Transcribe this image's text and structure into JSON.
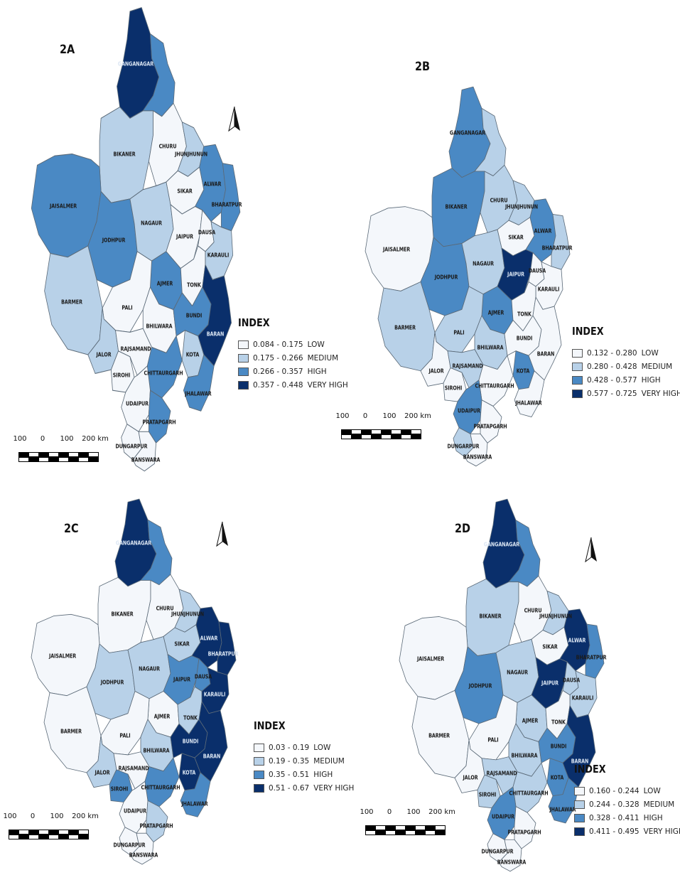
{
  "colors": {
    "low": "#f4f7fb",
    "medium": "#b8d1e8",
    "high": "#4a89c4",
    "very_high": "#0a2f6b",
    "border": "#5b6a78"
  },
  "panels": [
    {
      "label": "2A",
      "legend": {
        "title": "INDEX",
        "classes": [
          {
            "range": "0.084 - 0.175",
            "level": "LOW",
            "key": "low"
          },
          {
            "range": "0.175 - 0.266",
            "level": "MEDIUM",
            "key": "medium"
          },
          {
            "range": "0.266 - 0.357",
            "level": "HIGH",
            "key": "high"
          },
          {
            "range": "0.357 - 0.448",
            "level": "VERY HIGH",
            "key": "very_high"
          }
        ]
      },
      "scale": {
        "ticks": [
          "100",
          "0",
          "100",
          "200 km"
        ]
      },
      "north_arrow": "north-arrow-icon",
      "districts": [
        {
          "name": "GANGANAGAR",
          "class": "very_high"
        },
        {
          "name": "HANUMANGARH",
          "class": "high"
        },
        {
          "name": "BIKANER",
          "class": "medium"
        },
        {
          "name": "CHURU",
          "class": "low"
        },
        {
          "name": "JHUNJHUNUN",
          "class": "medium"
        },
        {
          "name": "SIKAR",
          "class": "low"
        },
        {
          "name": "ALWAR",
          "class": "high"
        },
        {
          "name": "BHARATPUR",
          "class": "high"
        },
        {
          "name": "JAISALMER",
          "class": "high"
        },
        {
          "name": "JODHPUR",
          "class": "high"
        },
        {
          "name": "NAGAUR",
          "class": "medium"
        },
        {
          "name": "JAIPUR",
          "class": "low"
        },
        {
          "name": "DAUSA",
          "class": "low"
        },
        {
          "name": "KARAULI",
          "class": "medium"
        },
        {
          "name": "AJMER",
          "class": "high"
        },
        {
          "name": "TONK",
          "class": "low"
        },
        {
          "name": "BARMER",
          "class": "medium"
        },
        {
          "name": "PALI",
          "class": "low"
        },
        {
          "name": "BHILWARA",
          "class": "low"
        },
        {
          "name": "BUNDI",
          "class": "high"
        },
        {
          "name": "KOTA",
          "class": "medium"
        },
        {
          "name": "BARAN",
          "class": "very_high"
        },
        {
          "name": "JALOR",
          "class": "medium"
        },
        {
          "name": "SIROHI",
          "class": "low"
        },
        {
          "name": "RAJSAMAND",
          "class": "low"
        },
        {
          "name": "CHITTAURGARH",
          "class": "high"
        },
        {
          "name": "UDAIPUR",
          "class": "low"
        },
        {
          "name": "JHALAWAR",
          "class": "high"
        },
        {
          "name": "PRATAPGARH",
          "class": "high"
        },
        {
          "name": "DUNGARPUR",
          "class": "low"
        },
        {
          "name": "BANSWARA",
          "class": "low"
        }
      ]
    },
    {
      "label": "2B",
      "legend": {
        "title": "INDEX",
        "classes": [
          {
            "range": "0.132 - 0.280",
            "level": "LOW",
            "key": "low"
          },
          {
            "range": "0.280 - 0.428",
            "level": "MEDIUM",
            "key": "medium"
          },
          {
            "range": "0.428 - 0.577",
            "level": "HIGH",
            "key": "high"
          },
          {
            "range": "0.577 - 0.725",
            "level": "VERY HIGH",
            "key": "very_high"
          }
        ]
      },
      "scale": {
        "ticks": [
          "100",
          "0",
          "100",
          "200 km"
        ]
      },
      "north_arrow": "",
      "districts": [
        {
          "name": "GANGANAGAR",
          "class": "high"
        },
        {
          "name": "HANUMANGARH",
          "class": "medium"
        },
        {
          "name": "BIKANER",
          "class": "high"
        },
        {
          "name": "CHURU",
          "class": "medium"
        },
        {
          "name": "JHUNJHUNUN",
          "class": "medium"
        },
        {
          "name": "SIKAR",
          "class": "low"
        },
        {
          "name": "ALWAR",
          "class": "high"
        },
        {
          "name": "BHARATPUR",
          "class": "medium"
        },
        {
          "name": "JAISALMER",
          "class": "low"
        },
        {
          "name": "JODHPUR",
          "class": "high"
        },
        {
          "name": "NAGAUR",
          "class": "medium"
        },
        {
          "name": "JAIPUR",
          "class": "very_high"
        },
        {
          "name": "DAUSA",
          "class": "low"
        },
        {
          "name": "KARAULI",
          "class": "low"
        },
        {
          "name": "AJMER",
          "class": "high"
        },
        {
          "name": "TONK",
          "class": "low"
        },
        {
          "name": "BARMER",
          "class": "medium"
        },
        {
          "name": "PALI",
          "class": "medium"
        },
        {
          "name": "BHILWARA",
          "class": "medium"
        },
        {
          "name": "BUNDI",
          "class": "low"
        },
        {
          "name": "KOTA",
          "class": "high"
        },
        {
          "name": "BARAN",
          "class": "low"
        },
        {
          "name": "JALOR",
          "class": "low"
        },
        {
          "name": "SIROHI",
          "class": "low"
        },
        {
          "name": "RAJSAMAND",
          "class": "medium"
        },
        {
          "name": "CHITTAURGARH",
          "class": "low"
        },
        {
          "name": "UDAIPUR",
          "class": "high"
        },
        {
          "name": "JHALAWAR",
          "class": "low"
        },
        {
          "name": "PRATAPGARH",
          "class": "low"
        },
        {
          "name": "DUNGARPUR",
          "class": "medium"
        },
        {
          "name": "BANSWARA",
          "class": "low"
        }
      ]
    },
    {
      "label": "2C",
      "legend": {
        "title": "INDEX",
        "classes": [
          {
            "range": "0.03 - 0.19",
            "level": "LOW",
            "key": "low"
          },
          {
            "range": "0.19 - 0.35",
            "level": "MEDIUM",
            "key": "medium"
          },
          {
            "range": "0.35 - 0.51",
            "level": "HIGH",
            "key": "high"
          },
          {
            "range": "0.51 - 0.67",
            "level": "VERY HIGH",
            "key": "very_high"
          }
        ]
      },
      "scale": {
        "ticks": [
          "100",
          "0",
          "100",
          "200 km"
        ]
      },
      "north_arrow": "north-arrow-icon",
      "districts": [
        {
          "name": "GANGANAGAR",
          "class": "very_high"
        },
        {
          "name": "HANUMANGARH",
          "class": "high"
        },
        {
          "name": "BIKANER",
          "class": "low"
        },
        {
          "name": "CHURU",
          "class": "low"
        },
        {
          "name": "JHUNJHUNUN",
          "class": "medium"
        },
        {
          "name": "SIKAR",
          "class": "medium"
        },
        {
          "name": "ALWAR",
          "class": "very_high"
        },
        {
          "name": "BHARATPUR",
          "class": "very_high"
        },
        {
          "name": "JAISALMER",
          "class": "low"
        },
        {
          "name": "JODHPUR",
          "class": "medium"
        },
        {
          "name": "NAGAUR",
          "class": "medium"
        },
        {
          "name": "JAIPUR",
          "class": "high"
        },
        {
          "name": "DAUSA",
          "class": "high"
        },
        {
          "name": "KARAULI",
          "class": "very_high"
        },
        {
          "name": "AJMER",
          "class": "low"
        },
        {
          "name": "TONK",
          "class": "medium"
        },
        {
          "name": "BARMER",
          "class": "low"
        },
        {
          "name": "PALI",
          "class": "low"
        },
        {
          "name": "BHILWARA",
          "class": "medium"
        },
        {
          "name": "BUNDI",
          "class": "very_high"
        },
        {
          "name": "KOTA",
          "class": "very_high"
        },
        {
          "name": "BARAN",
          "class": "very_high"
        },
        {
          "name": "JALOR",
          "class": "medium"
        },
        {
          "name": "SIROHI",
          "class": "high"
        },
        {
          "name": "RAJSAMAND",
          "class": "low"
        },
        {
          "name": "CHITTAURGARH",
          "class": "high"
        },
        {
          "name": "UDAIPUR",
          "class": "low"
        },
        {
          "name": "JHALAWAR",
          "class": "high"
        },
        {
          "name": "PRATAPGARH",
          "class": "medium"
        },
        {
          "name": "DUNGARPUR",
          "class": "low"
        },
        {
          "name": "BANSWARA",
          "class": "low"
        }
      ]
    },
    {
      "label": "2D",
      "legend": {
        "title": "INDEX",
        "classes": [
          {
            "range": "0.160 - 0.244",
            "level": "LOW",
            "key": "low"
          },
          {
            "range": "0.244 - 0.328",
            "level": "MEDIUM",
            "key": "medium"
          },
          {
            "range": "0.328 - 0.411",
            "level": "HIGH",
            "key": "high"
          },
          {
            "range": "0.411 - 0.495",
            "level": "VERY HIGH",
            "key": "very_high"
          }
        ]
      },
      "scale": {
        "ticks": [
          "100",
          "0",
          "100",
          "200 km"
        ]
      },
      "north_arrow": "north-arrow-icon",
      "districts": [
        {
          "name": "GANGANAGAR",
          "class": "very_high"
        },
        {
          "name": "HANUMANGARH",
          "class": "high"
        },
        {
          "name": "BIKANER",
          "class": "medium"
        },
        {
          "name": "CHURU",
          "class": "low"
        },
        {
          "name": "JHUNJHUNUN",
          "class": "medium"
        },
        {
          "name": "SIKAR",
          "class": "low"
        },
        {
          "name": "ALWAR",
          "class": "very_high"
        },
        {
          "name": "BHARATPUR",
          "class": "high"
        },
        {
          "name": "JAISALMER",
          "class": "low"
        },
        {
          "name": "JODHPUR",
          "class": "high"
        },
        {
          "name": "NAGAUR",
          "class": "medium"
        },
        {
          "name": "JAIPUR",
          "class": "very_high"
        },
        {
          "name": "DAUSA",
          "class": "medium"
        },
        {
          "name": "KARAULI",
          "class": "medium"
        },
        {
          "name": "AJMER",
          "class": "medium"
        },
        {
          "name": "TONK",
          "class": "low"
        },
        {
          "name": "BARMER",
          "class": "low"
        },
        {
          "name": "PALI",
          "class": "low"
        },
        {
          "name": "BHILWARA",
          "class": "medium"
        },
        {
          "name": "BUNDI",
          "class": "high"
        },
        {
          "name": "KOTA",
          "class": "high"
        },
        {
          "name": "BARAN",
          "class": "very_high"
        },
        {
          "name": "JALOR",
          "class": "low"
        },
        {
          "name": "SIROHI",
          "class": "medium"
        },
        {
          "name": "RAJSAMAND",
          "class": "medium"
        },
        {
          "name": "CHITTAURGARH",
          "class": "medium"
        },
        {
          "name": "UDAIPUR",
          "class": "high"
        },
        {
          "name": "JHALAWAR",
          "class": "high"
        },
        {
          "name": "PRATAPGARH",
          "class": "low"
        },
        {
          "name": "DUNGARPUR",
          "class": "low"
        },
        {
          "name": "BANSWARA",
          "class": "low"
        }
      ]
    }
  ]
}
